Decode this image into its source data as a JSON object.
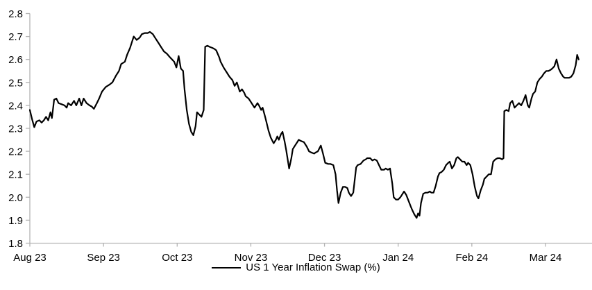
{
  "chart_data": {
    "type": "line",
    "title": "",
    "legend_position": "bottom-center",
    "grid": false,
    "background_color": "#ffffff",
    "axis_color": "#b3b3b3",
    "line_color": "#000000",
    "ylim": [
      1.8,
      2.8
    ],
    "y_tick_step": 0.1,
    "y_tick_labels": [
      "1.8",
      "1.9",
      "2.0",
      "2.1",
      "2.2",
      "2.3",
      "2.4",
      "2.5",
      "2.6",
      "2.7",
      "2.8"
    ],
    "x_tick_labels": [
      "Aug 23",
      "Sep 23",
      "Oct 23",
      "Nov 23",
      "Dec 23",
      "Jan 24",
      "Feb 24",
      "Mar 24"
    ],
    "x_note": "x = months after 1 Aug 2023 (0 = Aug 1 '23, 1 = Sep 1 '23, ... 7 = Mar 1 '24, series ends mid-March 2024)",
    "series": [
      {
        "name": "US 1 Year Inflation Swap (%)",
        "color": "#000000",
        "points": [
          [
            0,
            2.38
          ],
          [
            0.03,
            2.34
          ],
          [
            0.06,
            2.305
          ],
          [
            0.09,
            2.33
          ],
          [
            0.13,
            2.335
          ],
          [
            0.16,
            2.325
          ],
          [
            0.19,
            2.335
          ],
          [
            0.22,
            2.35
          ],
          [
            0.25,
            2.335
          ],
          [
            0.28,
            2.37
          ],
          [
            0.3,
            2.345
          ],
          [
            0.33,
            2.425
          ],
          [
            0.36,
            2.43
          ],
          [
            0.39,
            2.41
          ],
          [
            0.43,
            2.405
          ],
          [
            0.47,
            2.4
          ],
          [
            0.5,
            2.39
          ],
          [
            0.52,
            2.41
          ],
          [
            0.56,
            2.4
          ],
          [
            0.6,
            2.42
          ],
          [
            0.63,
            2.4
          ],
          [
            0.67,
            2.43
          ],
          [
            0.7,
            2.4
          ],
          [
            0.73,
            2.43
          ],
          [
            0.77,
            2.41
          ],
          [
            0.81,
            2.4
          ],
          [
            0.84,
            2.395
          ],
          [
            0.87,
            2.385
          ],
          [
            0.91,
            2.41
          ],
          [
            0.94,
            2.43
          ],
          [
            0.98,
            2.46
          ],
          [
            1.03,
            2.48
          ],
          [
            1.08,
            2.49
          ],
          [
            1.12,
            2.5
          ],
          [
            1.17,
            2.53
          ],
          [
            1.21,
            2.55
          ],
          [
            1.24,
            2.58
          ],
          [
            1.29,
            2.59
          ],
          [
            1.32,
            2.62
          ],
          [
            1.36,
            2.65
          ],
          [
            1.41,
            2.7
          ],
          [
            1.45,
            2.685
          ],
          [
            1.49,
            2.695
          ],
          [
            1.52,
            2.71
          ],
          [
            1.56,
            2.715
          ],
          [
            1.6,
            2.715
          ],
          [
            1.63,
            2.72
          ],
          [
            1.67,
            2.71
          ],
          [
            1.7,
            2.695
          ],
          [
            1.74,
            2.675
          ],
          [
            1.78,
            2.655
          ],
          [
            1.82,
            2.635
          ],
          [
            1.86,
            2.625
          ],
          [
            1.9,
            2.61
          ],
          [
            1.93,
            2.6
          ],
          [
            1.96,
            2.59
          ],
          [
            1.99,
            2.565
          ],
          [
            2.02,
            2.615
          ],
          [
            2.05,
            2.56
          ],
          [
            2.08,
            2.55
          ],
          [
            2.1,
            2.47
          ],
          [
            2.13,
            2.38
          ],
          [
            2.16,
            2.32
          ],
          [
            2.19,
            2.285
          ],
          [
            2.22,
            2.27
          ],
          [
            2.25,
            2.31
          ],
          [
            2.27,
            2.37
          ],
          [
            2.3,
            2.36
          ],
          [
            2.33,
            2.35
          ],
          [
            2.36,
            2.38
          ],
          [
            2.38,
            2.655
          ],
          [
            2.41,
            2.66
          ],
          [
            2.44,
            2.655
          ],
          [
            2.48,
            2.65
          ],
          [
            2.51,
            2.645
          ],
          [
            2.53,
            2.64
          ],
          [
            2.57,
            2.61
          ],
          [
            2.59,
            2.59
          ],
          [
            2.63,
            2.565
          ],
          [
            2.67,
            2.545
          ],
          [
            2.71,
            2.525
          ],
          [
            2.75,
            2.51
          ],
          [
            2.78,
            2.485
          ],
          [
            2.81,
            2.5
          ],
          [
            2.85,
            2.46
          ],
          [
            2.88,
            2.47
          ],
          [
            2.91,
            2.455
          ],
          [
            2.93,
            2.44
          ],
          [
            2.97,
            2.43
          ],
          [
            3,
            2.415
          ],
          [
            3.03,
            2.4
          ],
          [
            3.05,
            2.39
          ],
          [
            3.09,
            2.41
          ],
          [
            3.11,
            2.4
          ],
          [
            3.14,
            2.38
          ],
          [
            3.16,
            2.39
          ],
          [
            3.19,
            2.355
          ],
          [
            3.21,
            2.33
          ],
          [
            3.24,
            2.29
          ],
          [
            3.27,
            2.26
          ],
          [
            3.31,
            2.235
          ],
          [
            3.34,
            2.25
          ],
          [
            3.36,
            2.265
          ],
          [
            3.38,
            2.25
          ],
          [
            3.41,
            2.275
          ],
          [
            3.43,
            2.285
          ],
          [
            3.46,
            2.24
          ],
          [
            3.48,
            2.205
          ],
          [
            3.52,
            2.125
          ],
          [
            3.55,
            2.17
          ],
          [
            3.57,
            2.21
          ],
          [
            3.6,
            2.225
          ],
          [
            3.63,
            2.24
          ],
          [
            3.65,
            2.25
          ],
          [
            3.68,
            2.245
          ],
          [
            3.72,
            2.24
          ],
          [
            3.76,
            2.22
          ],
          [
            3.79,
            2.2
          ],
          [
            3.82,
            2.195
          ],
          [
            3.86,
            2.19
          ],
          [
            3.88,
            2.195
          ],
          [
            3.91,
            2.2
          ],
          [
            3.95,
            2.225
          ],
          [
            3.98,
            2.19
          ],
          [
            4.01,
            2.15
          ],
          [
            4.05,
            2.145
          ],
          [
            4.08,
            2.145
          ],
          [
            4.12,
            2.14
          ],
          [
            4.15,
            2.1
          ],
          [
            4.17,
            2.03
          ],
          [
            4.19,
            1.975
          ],
          [
            4.22,
            2.02
          ],
          [
            4.25,
            2.045
          ],
          [
            4.28,
            2.045
          ],
          [
            4.31,
            2.04
          ],
          [
            4.33,
            2.02
          ],
          [
            4.36,
            2.005
          ],
          [
            4.39,
            2.02
          ],
          [
            4.43,
            2.13
          ],
          [
            4.45,
            2.14
          ],
          [
            4.49,
            2.145
          ],
          [
            4.53,
            2.16
          ],
          [
            4.56,
            2.165
          ],
          [
            4.58,
            2.17
          ],
          [
            4.62,
            2.17
          ],
          [
            4.65,
            2.16
          ],
          [
            4.68,
            2.165
          ],
          [
            4.71,
            2.16
          ],
          [
            4.74,
            2.14
          ],
          [
            4.77,
            2.12
          ],
          [
            4.81,
            2.12
          ],
          [
            4.83,
            2.125
          ],
          [
            4.86,
            2.12
          ],
          [
            4.89,
            2.125
          ],
          [
            4.92,
            2.06
          ],
          [
            4.94,
            2.0
          ],
          [
            4.97,
            1.99
          ],
          [
            5,
            1.99
          ],
          [
            5.03,
            2.0
          ],
          [
            5.06,
            2.015
          ],
          [
            5.08,
            2.025
          ],
          [
            5.11,
            2.01
          ],
          [
            5.14,
            1.985
          ],
          [
            5.17,
            1.96
          ],
          [
            5.19,
            1.945
          ],
          [
            5.22,
            1.925
          ],
          [
            5.25,
            1.91
          ],
          [
            5.27,
            1.93
          ],
          [
            5.29,
            1.92
          ],
          [
            5.31,
            1.975
          ],
          [
            5.34,
            2.015
          ],
          [
            5.37,
            2.02
          ],
          [
            5.4,
            2.02
          ],
          [
            5.43,
            2.025
          ],
          [
            5.45,
            2.02
          ],
          [
            5.48,
            2.02
          ],
          [
            5.51,
            2.05
          ],
          [
            5.54,
            2.09
          ],
          [
            5.56,
            2.105
          ],
          [
            5.59,
            2.11
          ],
          [
            5.62,
            2.12
          ],
          [
            5.65,
            2.14
          ],
          [
            5.68,
            2.15
          ],
          [
            5.7,
            2.155
          ],
          [
            5.73,
            2.125
          ],
          [
            5.76,
            2.14
          ],
          [
            5.79,
            2.17
          ],
          [
            5.81,
            2.175
          ],
          [
            5.84,
            2.165
          ],
          [
            5.87,
            2.155
          ],
          [
            5.9,
            2.155
          ],
          [
            5.93,
            2.14
          ],
          [
            5.95,
            2.15
          ],
          [
            5.98,
            2.14
          ],
          [
            6.01,
            2.1
          ],
          [
            6.04,
            2.045
          ],
          [
            6.07,
            2.005
          ],
          [
            6.09,
            1.995
          ],
          [
            6.12,
            2.03
          ],
          [
            6.15,
            2.055
          ],
          [
            6.17,
            2.08
          ],
          [
            6.2,
            2.09
          ],
          [
            6.23,
            2.1
          ],
          [
            6.26,
            2.1
          ],
          [
            6.29,
            2.155
          ],
          [
            6.32,
            2.165
          ],
          [
            6.35,
            2.17
          ],
          [
            6.38,
            2.17
          ],
          [
            6.41,
            2.165
          ],
          [
            6.43,
            2.17
          ],
          [
            6.44,
            2.375
          ],
          [
            6.47,
            2.38
          ],
          [
            6.5,
            2.375
          ],
          [
            6.52,
            2.41
          ],
          [
            6.55,
            2.42
          ],
          [
            6.58,
            2.39
          ],
          [
            6.61,
            2.4
          ],
          [
            6.64,
            2.41
          ],
          [
            6.67,
            2.4
          ],
          [
            6.7,
            2.42
          ],
          [
            6.73,
            2.445
          ],
          [
            6.76,
            2.4
          ],
          [
            6.78,
            2.39
          ],
          [
            6.81,
            2.43
          ],
          [
            6.83,
            2.45
          ],
          [
            6.86,
            2.46
          ],
          [
            6.89,
            2.5
          ],
          [
            6.92,
            2.515
          ],
          [
            6.95,
            2.525
          ],
          [
            6.98,
            2.54
          ],
          [
            7.01,
            2.55
          ],
          [
            7.04,
            2.55
          ],
          [
            7.07,
            2.555
          ],
          [
            7.09,
            2.56
          ],
          [
            7.12,
            2.57
          ],
          [
            7.15,
            2.6
          ],
          [
            7.18,
            2.56
          ],
          [
            7.21,
            2.54
          ],
          [
            7.24,
            2.525
          ],
          [
            7.26,
            2.52
          ],
          [
            7.29,
            2.52
          ],
          [
            7.32,
            2.52
          ],
          [
            7.35,
            2.525
          ],
          [
            7.38,
            2.54
          ],
          [
            7.41,
            2.575
          ],
          [
            7.43,
            2.62
          ],
          [
            7.45,
            2.6
          ]
        ]
      }
    ]
  }
}
